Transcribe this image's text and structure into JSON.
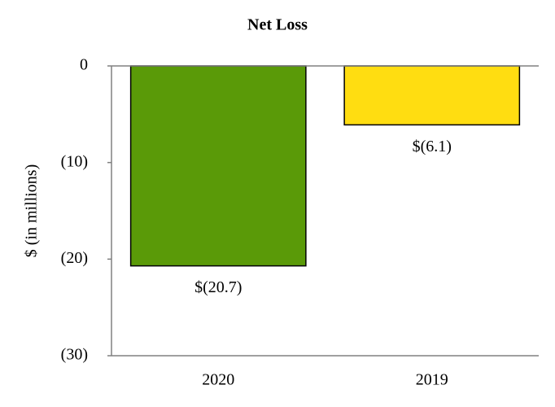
{
  "chart_data": {
    "type": "bar",
    "title": "Net Loss",
    "y_label": "$ (in millions)",
    "categories": [
      "2020",
      "2019"
    ],
    "values": [
      -20.7,
      -6.1
    ],
    "value_labels": [
      "$(20.7)",
      "$(6.1)"
    ],
    "colors": [
      "#5a9a08",
      "#ffdd11"
    ],
    "ylim": [
      -30,
      0
    ],
    "yticks": [
      0,
      {
        "value": -10,
        "label": "(10)"
      },
      {
        "value": -20,
        "label": "(20)"
      },
      {
        "value": -30,
        "label": "(30)"
      }
    ],
    "grid": false
  }
}
